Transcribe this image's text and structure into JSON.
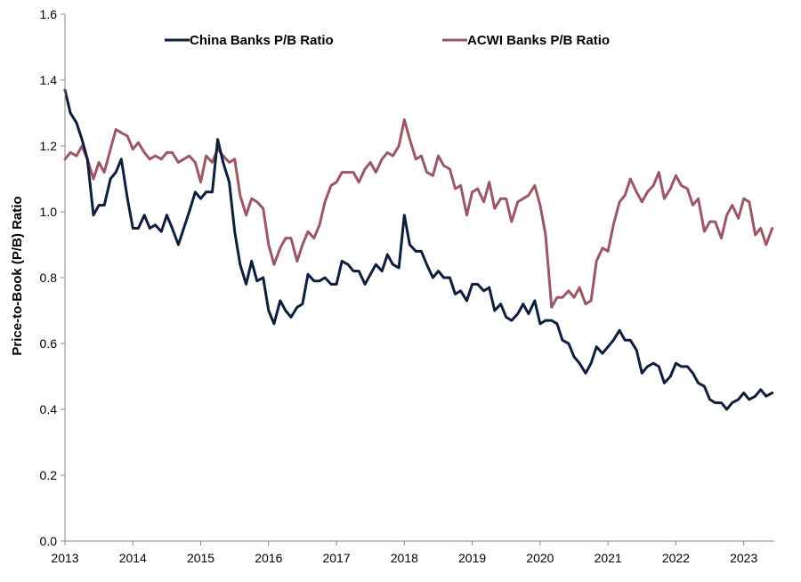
{
  "chart_data": {
    "type": "line",
    "title": "",
    "xlabel": "",
    "ylabel": "Price-to-Book (P/B) Ratio",
    "xlim": [
      2013.0,
      2023.45
    ],
    "ylim": [
      0,
      1.6
    ],
    "yticks": [
      0.0,
      0.2,
      0.4,
      0.6,
      0.8,
      1.0,
      1.2,
      1.4,
      1.6
    ],
    "ytick_labels": [
      "0.0",
      "0.2",
      "0.4",
      "0.6",
      "0.8",
      "1.0",
      "1.2",
      "1.4",
      "1.6"
    ],
    "xticks": [
      2013,
      2014,
      2015,
      2016,
      2017,
      2018,
      2019,
      2020,
      2021,
      2022,
      2023
    ],
    "xtick_labels": [
      "2013",
      "2014",
      "2015",
      "2016",
      "2017",
      "2018",
      "2019",
      "2020",
      "2021",
      "2022",
      "2023"
    ],
    "grid": false,
    "legend_position": "top-center",
    "series": [
      {
        "name": "China Banks P/B Ratio",
        "color": "#0d1f3c",
        "x": [
          2013.0,
          2013.08,
          2013.17,
          2013.25,
          2013.33,
          2013.42,
          2013.5,
          2013.58,
          2013.67,
          2013.75,
          2013.83,
          2013.92,
          2014.0,
          2014.08,
          2014.17,
          2014.25,
          2014.33,
          2014.42,
          2014.5,
          2014.58,
          2014.67,
          2014.75,
          2014.83,
          2014.92,
          2015.0,
          2015.08,
          2015.17,
          2015.25,
          2015.33,
          2015.42,
          2015.5,
          2015.58,
          2015.67,
          2015.75,
          2015.83,
          2015.92,
          2016.0,
          2016.08,
          2016.17,
          2016.25,
          2016.33,
          2016.42,
          2016.5,
          2016.58,
          2016.67,
          2016.75,
          2016.83,
          2016.92,
          2017.0,
          2017.08,
          2017.17,
          2017.25,
          2017.33,
          2017.42,
          2017.5,
          2017.58,
          2017.67,
          2017.75,
          2017.83,
          2017.92,
          2018.0,
          2018.08,
          2018.17,
          2018.25,
          2018.33,
          2018.42,
          2018.5,
          2018.58,
          2018.67,
          2018.75,
          2018.83,
          2018.92,
          2019.0,
          2019.08,
          2019.17,
          2019.25,
          2019.33,
          2019.42,
          2019.5,
          2019.58,
          2019.67,
          2019.75,
          2019.83,
          2019.92,
          2020.0,
          2020.08,
          2020.17,
          2020.25,
          2020.33,
          2020.42,
          2020.5,
          2020.58,
          2020.67,
          2020.75,
          2020.83,
          2020.92,
          2021.0,
          2021.08,
          2021.17,
          2021.25,
          2021.33,
          2021.42,
          2021.5,
          2021.58,
          2021.67,
          2021.75,
          2021.83,
          2021.92,
          2022.0,
          2022.08,
          2022.17,
          2022.25,
          2022.33,
          2022.42,
          2022.5,
          2022.58,
          2022.67,
          2022.75,
          2022.83,
          2022.92,
          2023.0,
          2023.08,
          2023.17,
          2023.25,
          2023.33,
          2023.42
        ],
        "y": [
          1.37,
          1.3,
          1.27,
          1.22,
          1.16,
          0.99,
          1.02,
          1.02,
          1.1,
          1.12,
          1.16,
          1.04,
          0.95,
          0.95,
          0.99,
          0.95,
          0.96,
          0.94,
          0.99,
          0.95,
          0.9,
          0.95,
          1.0,
          1.06,
          1.04,
          1.06,
          1.06,
          1.22,
          1.15,
          1.09,
          0.94,
          0.84,
          0.78,
          0.85,
          0.79,
          0.8,
          0.7,
          0.66,
          0.73,
          0.7,
          0.68,
          0.71,
          0.72,
          0.81,
          0.79,
          0.79,
          0.8,
          0.78,
          0.78,
          0.85,
          0.84,
          0.82,
          0.82,
          0.78,
          0.81,
          0.84,
          0.82,
          0.87,
          0.84,
          0.83,
          0.99,
          0.9,
          0.88,
          0.88,
          0.84,
          0.8,
          0.82,
          0.8,
          0.8,
          0.75,
          0.76,
          0.73,
          0.78,
          0.78,
          0.76,
          0.77,
          0.7,
          0.72,
          0.68,
          0.67,
          0.69,
          0.72,
          0.69,
          0.73,
          0.66,
          0.67,
          0.67,
          0.66,
          0.61,
          0.6,
          0.56,
          0.54,
          0.51,
          0.54,
          0.59,
          0.57,
          0.59,
          0.61,
          0.64,
          0.61,
          0.61,
          0.58,
          0.51,
          0.53,
          0.54,
          0.53,
          0.48,
          0.5,
          0.54,
          0.53,
          0.53,
          0.51,
          0.48,
          0.47,
          0.43,
          0.42,
          0.42,
          0.4,
          0.42,
          0.43,
          0.45,
          0.43,
          0.44,
          0.46,
          0.44,
          0.45
        ]
      },
      {
        "name": "ACWI Banks P/B Ratio",
        "color": "#9c5766",
        "x": [
          2013.0,
          2013.08,
          2013.17,
          2013.25,
          2013.33,
          2013.42,
          2013.5,
          2013.58,
          2013.67,
          2013.75,
          2013.83,
          2013.92,
          2014.0,
          2014.08,
          2014.17,
          2014.25,
          2014.33,
          2014.42,
          2014.5,
          2014.58,
          2014.67,
          2014.75,
          2014.83,
          2014.92,
          2015.0,
          2015.08,
          2015.17,
          2015.25,
          2015.33,
          2015.42,
          2015.5,
          2015.58,
          2015.67,
          2015.75,
          2015.83,
          2015.92,
          2016.0,
          2016.08,
          2016.17,
          2016.25,
          2016.33,
          2016.42,
          2016.5,
          2016.58,
          2016.67,
          2016.75,
          2016.83,
          2016.92,
          2017.0,
          2017.08,
          2017.17,
          2017.25,
          2017.33,
          2017.42,
          2017.5,
          2017.58,
          2017.67,
          2017.75,
          2017.83,
          2017.92,
          2018.0,
          2018.08,
          2018.17,
          2018.25,
          2018.33,
          2018.42,
          2018.5,
          2018.58,
          2018.67,
          2018.75,
          2018.83,
          2018.92,
          2019.0,
          2019.08,
          2019.17,
          2019.25,
          2019.33,
          2019.42,
          2019.5,
          2019.58,
          2019.67,
          2019.75,
          2019.83,
          2019.92,
          2020.0,
          2020.08,
          2020.17,
          2020.25,
          2020.33,
          2020.42,
          2020.5,
          2020.58,
          2020.67,
          2020.75,
          2020.83,
          2020.92,
          2021.0,
          2021.08,
          2021.17,
          2021.25,
          2021.33,
          2021.42,
          2021.5,
          2021.58,
          2021.67,
          2021.75,
          2021.83,
          2021.92,
          2022.0,
          2022.08,
          2022.17,
          2022.25,
          2022.33,
          2022.42,
          2022.5,
          2022.58,
          2022.67,
          2022.75,
          2022.83,
          2022.92,
          2023.0,
          2023.08,
          2023.17,
          2023.25,
          2023.33,
          2023.42
        ],
        "y": [
          1.16,
          1.18,
          1.17,
          1.2,
          1.16,
          1.1,
          1.15,
          1.12,
          1.19,
          1.25,
          1.24,
          1.23,
          1.19,
          1.21,
          1.18,
          1.16,
          1.17,
          1.16,
          1.18,
          1.18,
          1.15,
          1.16,
          1.17,
          1.15,
          1.09,
          1.17,
          1.15,
          1.19,
          1.17,
          1.15,
          1.16,
          1.05,
          0.99,
          1.04,
          1.03,
          1.01,
          0.9,
          0.84,
          0.89,
          0.92,
          0.92,
          0.85,
          0.9,
          0.94,
          0.92,
          0.96,
          1.03,
          1.08,
          1.09,
          1.12,
          1.12,
          1.12,
          1.09,
          1.13,
          1.15,
          1.12,
          1.16,
          1.18,
          1.17,
          1.2,
          1.28,
          1.22,
          1.16,
          1.17,
          1.12,
          1.11,
          1.17,
          1.14,
          1.13,
          1.07,
          1.08,
          0.99,
          1.06,
          1.07,
          1.03,
          1.09,
          1.01,
          1.04,
          1.04,
          0.97,
          1.03,
          1.04,
          1.05,
          1.08,
          1.02,
          0.93,
          0.71,
          0.74,
          0.74,
          0.76,
          0.74,
          0.77,
          0.72,
          0.73,
          0.85,
          0.89,
          0.88,
          0.96,
          1.03,
          1.05,
          1.1,
          1.06,
          1.03,
          1.06,
          1.08,
          1.12,
          1.04,
          1.07,
          1.11,
          1.08,
          1.07,
          1.02,
          1.04,
          0.94,
          0.97,
          0.97,
          0.92,
          0.99,
          1.02,
          0.98,
          1.04,
          1.03,
          0.93,
          0.95,
          0.9,
          0.95
        ]
      }
    ]
  }
}
